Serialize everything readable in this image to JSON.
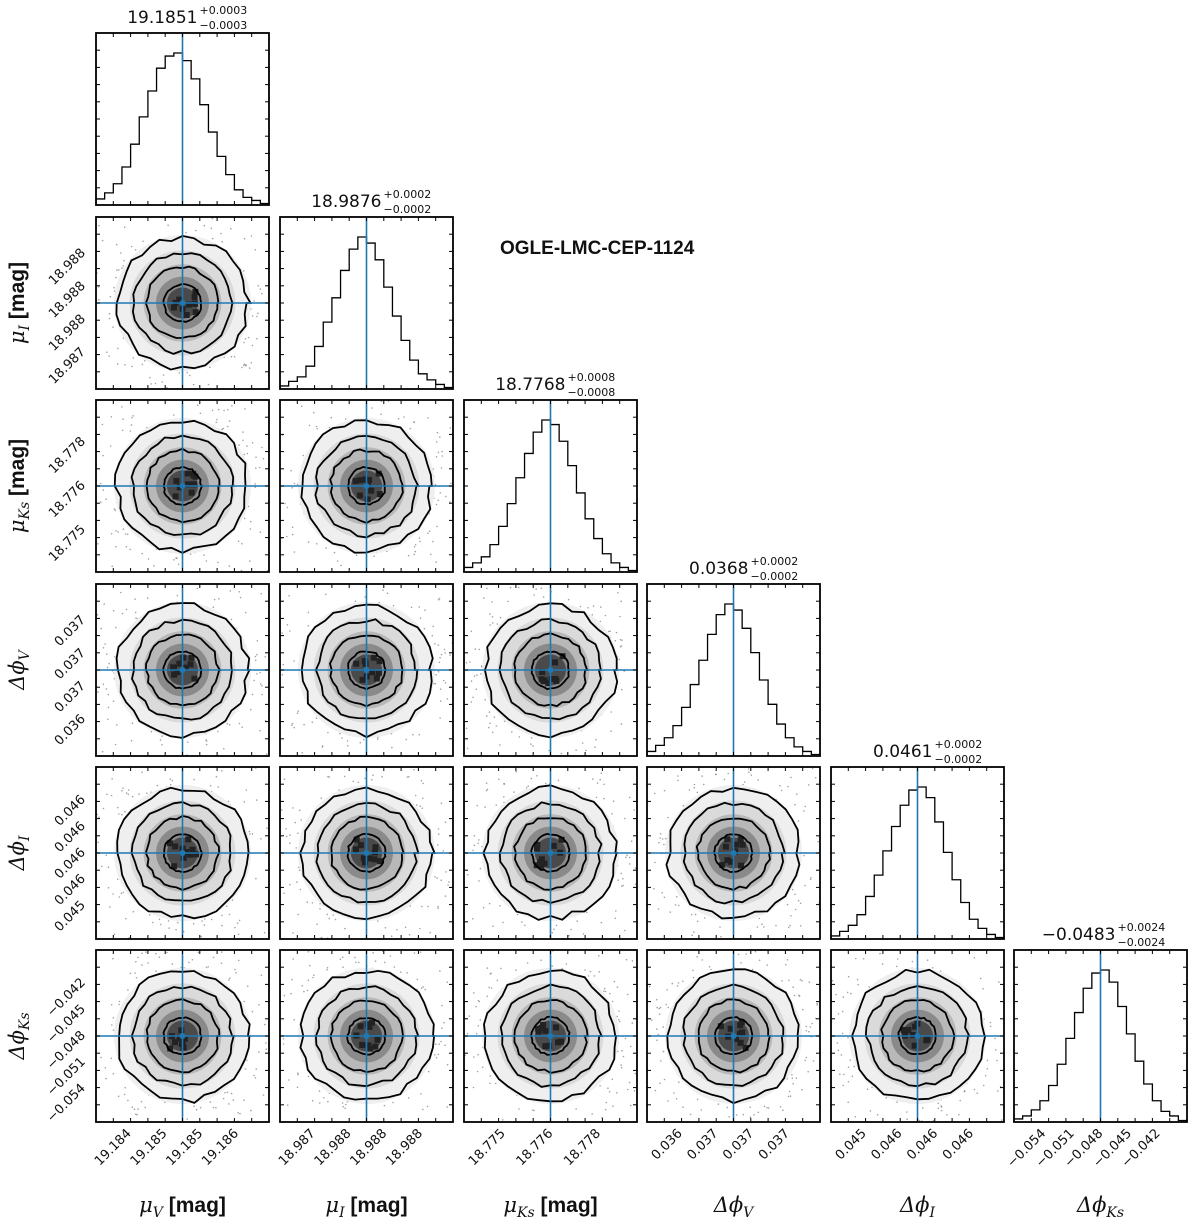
{
  "chart_data": {
    "type": "corner",
    "title": "OGLE-LMC-CEP-1124",
    "parameters": [
      {
        "name": "mu_V",
        "label_main": "μ",
        "label_sub": "V",
        "unit": " [mag]",
        "median": 19.1851,
        "median_text": "19.1851",
        "err_plus": "+0.0003",
        "err_minus": "−0.0003",
        "x_ticks": [
          "19.184",
          "19.185",
          "19.185",
          "19.186"
        ],
        "y_ticks": [],
        "hist": [
          0.04,
          0.08,
          0.14,
          0.25,
          0.4,
          0.58,
          0.75,
          0.9,
          0.98,
          1.0,
          0.95,
          0.83,
          0.66,
          0.48,
          0.32,
          0.2,
          0.1,
          0.05,
          0.03,
          0.01
        ]
      },
      {
        "name": "mu_I",
        "label_main": "μ",
        "label_sub": "I",
        "unit": " [mag]",
        "median": 18.9876,
        "median_text": "18.9876",
        "err_plus": "+0.0002",
        "err_minus": "−0.0002",
        "x_ticks": [
          "18.987",
          "18.988",
          "18.988",
          "18.988"
        ],
        "y_ticks": [
          "18.988",
          "18.988",
          "18.988",
          "18.987"
        ],
        "hist": [
          0.02,
          0.05,
          0.08,
          0.15,
          0.28,
          0.44,
          0.6,
          0.78,
          0.92,
          1.0,
          0.96,
          0.85,
          0.67,
          0.48,
          0.32,
          0.19,
          0.1,
          0.06,
          0.03,
          0.01
        ]
      },
      {
        "name": "mu_Ks",
        "label_main": "μ",
        "label_sub": "Ks",
        "unit": " [mag]",
        "median": 18.7768,
        "median_text": "18.7768",
        "err_plus": "+0.0008",
        "err_minus": "−0.0008",
        "x_ticks": [
          "18.775",
          "18.776",
          "18.778"
        ],
        "y_ticks": [
          "18.778",
          "18.776",
          "18.775"
        ],
        "hist": [
          0.03,
          0.06,
          0.1,
          0.18,
          0.3,
          0.45,
          0.62,
          0.78,
          0.92,
          1.0,
          0.97,
          0.86,
          0.7,
          0.52,
          0.35,
          0.22,
          0.12,
          0.06,
          0.03,
          0.01
        ]
      },
      {
        "name": "dphi_V",
        "label_main": "Δϕ",
        "label_sub": "V",
        "unit": "",
        "median": 0.0368,
        "median_text": "0.0368",
        "err_plus": "+0.0002",
        "err_minus": "−0.0002",
        "x_ticks": [
          "0.036",
          "0.037",
          "0.037",
          "0.037"
        ],
        "y_ticks": [
          "0.037",
          "0.037",
          "0.037",
          "0.036"
        ],
        "hist": [
          0.03,
          0.07,
          0.12,
          0.2,
          0.32,
          0.47,
          0.63,
          0.8,
          0.93,
          1.0,
          0.96,
          0.84,
          0.68,
          0.5,
          0.34,
          0.21,
          0.12,
          0.06,
          0.03,
          0.01
        ]
      },
      {
        "name": "dphi_I",
        "label_main": "Δϕ",
        "label_sub": "I",
        "unit": "",
        "median": 0.0461,
        "median_text": "0.0461",
        "err_plus": "+0.0002",
        "err_minus": "−0.0002",
        "x_ticks": [
          "0.045",
          "0.046",
          "0.046",
          "0.046"
        ],
        "y_ticks": [
          "0.046",
          "0.046",
          "0.046",
          "0.046",
          "0.045"
        ],
        "hist": [
          0.02,
          0.05,
          0.09,
          0.16,
          0.28,
          0.42,
          0.58,
          0.74,
          0.88,
          0.98,
          1.0,
          0.93,
          0.77,
          0.57,
          0.39,
          0.24,
          0.13,
          0.07,
          0.03,
          0.01
        ]
      },
      {
        "name": "dphi_Ks",
        "label_main": "Δϕ",
        "label_sub": "Ks",
        "unit": "",
        "median": -0.0483,
        "median_text": "−0.0483",
        "err_plus": "+0.0024",
        "err_minus": "−0.0024",
        "x_ticks": [
          "−0.054",
          "−0.051",
          "−0.048",
          "−0.045",
          "−0.042"
        ],
        "y_ticks": [
          "−0.042",
          "−0.045",
          "−0.048",
          "−0.051",
          "−0.054"
        ],
        "hist": [
          0.02,
          0.04,
          0.08,
          0.14,
          0.24,
          0.38,
          0.55,
          0.72,
          0.88,
          0.98,
          1.0,
          0.92,
          0.76,
          0.58,
          0.4,
          0.25,
          0.14,
          0.07,
          0.04,
          0.01
        ]
      }
    ],
    "truth_line_color": "#1f77b4",
    "density_color": "#000000",
    "contour_color": "#000000"
  }
}
